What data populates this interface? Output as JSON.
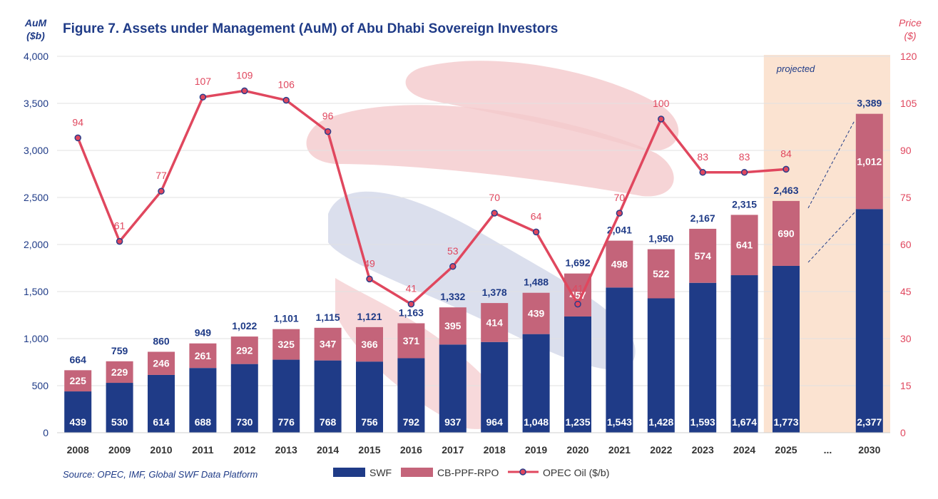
{
  "colors": {
    "swf": "#1f3b87",
    "cb": "#c4647a",
    "oil": "#e0475e",
    "title": "#1f3b87",
    "projected_bg": "#fbe3d1",
    "watermark_red": "#f4c9cc",
    "watermark_blue": "#d5d9ea"
  },
  "chart_data": {
    "type": "bar",
    "title": "Figure 7. Assets under Management (AuM) of Abu Dhabi Sovereign Investors",
    "ylabel_left": [
      "AuM",
      "($b)"
    ],
    "ylabel_right": [
      "Price",
      "($)"
    ],
    "ylim_left": [
      0,
      4000
    ],
    "ylim_right": [
      0,
      120
    ],
    "yticks_left": [
      "0",
      "500",
      "1,000",
      "1,500",
      "2,000",
      "2,500",
      "3,000",
      "3,500",
      "4,000"
    ],
    "yticks_right": [
      "0",
      "15",
      "30",
      "45",
      "60",
      "75",
      "90",
      "105",
      "120"
    ],
    "categories": [
      "2008",
      "2009",
      "2010",
      "2011",
      "2012",
      "2013",
      "2014",
      "2015",
      "2016",
      "2017",
      "2018",
      "2019",
      "2020",
      "2021",
      "2022",
      "2023",
      "2024",
      "2025",
      "...",
      "2030"
    ],
    "series": [
      {
        "name": "SWF",
        "values": [
          439,
          530,
          614,
          688,
          730,
          776,
          768,
          756,
          792,
          937,
          964,
          1048,
          1235,
          1543,
          1428,
          1593,
          1674,
          1773,
          null,
          2377
        ],
        "labels": [
          "439",
          "530",
          "614",
          "688",
          "730",
          "776",
          "768",
          "756",
          "792",
          "937",
          "964",
          "1,048",
          "1,235",
          "1,543",
          "1,428",
          "1,593",
          "1,674",
          "1,773",
          "",
          "2,377"
        ]
      },
      {
        "name": "CB-PPF-RPO",
        "values": [
          225,
          229,
          246,
          261,
          292,
          325,
          347,
          366,
          371,
          395,
          414,
          439,
          457,
          498,
          522,
          574,
          641,
          690,
          null,
          1012
        ],
        "labels": [
          "225",
          "229",
          "246",
          "261",
          "292",
          "325",
          "347",
          "366",
          "371",
          "395",
          "414",
          "439",
          "457",
          "498",
          "522",
          "574",
          "641",
          "690",
          "",
          "1,012"
        ]
      },
      {
        "name": "OPEC Oil ($/b)",
        "values": [
          94,
          61,
          77,
          107,
          109,
          106,
          96,
          49,
          41,
          53,
          70,
          64,
          41,
          70,
          100,
          83,
          83,
          84,
          null,
          null
        ],
        "labels": [
          "94",
          "61",
          "77",
          "107",
          "109",
          "106",
          "96",
          "49",
          "41",
          "53",
          "70",
          "64",
          "41",
          "70",
          "100",
          "83",
          "83",
          "84",
          "",
          ""
        ]
      }
    ],
    "totals": [
      664,
      759,
      860,
      949,
      1022,
      1101,
      1115,
      1121,
      1163,
      1332,
      1378,
      1488,
      1692,
      2041,
      1950,
      2167,
      2315,
      2463,
      null,
      3389
    ],
    "total_labels": [
      "664",
      "759",
      "860",
      "949",
      "1,022",
      "1,101",
      "1,115",
      "1,121",
      "1,163",
      "1,332",
      "1,378",
      "1,488",
      "1,692",
      "2,041",
      "1,950",
      "2,167",
      "2,315",
      "2,463",
      "",
      "3,389"
    ],
    "projected_label": "projected",
    "projected_from": "2025",
    "source": "Source: OPEC, IMF, Global SWF Data Platform",
    "legend": [
      "SWF",
      "CB-PPF-RPO",
      "OPEC Oil ($/b)"
    ]
  }
}
